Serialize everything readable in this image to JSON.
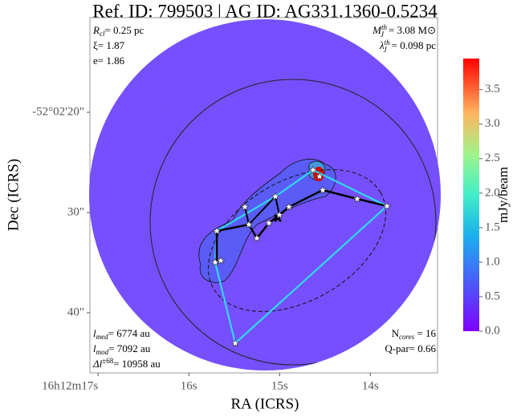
{
  "chart_data": {
    "type": "image",
    "title": "Ref. ID: 799503 | AG ID: AG331.1360-0.5234",
    "x_label": "RA (ICRS)",
    "y_label": "Dec (ICRS)",
    "xlim": [
      17.09,
      13.26
    ],
    "xticks": [
      {
        "value": 17,
        "label": "16h12m17s"
      },
      {
        "value": 16,
        "label": "16s"
      },
      {
        "value": 15,
        "label": "15s"
      },
      {
        "value": 14,
        "label": "14s"
      }
    ],
    "ylim": [
      46,
      10.56
    ],
    "yticks": [
      {
        "value": 20,
        "label": "-52°02'20\""
      },
      {
        "value": 30,
        "label": "30\""
      },
      {
        "value": 40,
        "label": "40\""
      }
    ],
    "colorbar": {
      "label": "mJy/beam",
      "lim": [
        0,
        3.95
      ],
      "ticks": [
        {
          "value": 0,
          "label": "0.0"
        },
        {
          "value": 0.5,
          "label": "0.5"
        },
        {
          "value": 1,
          "label": "1.0"
        },
        {
          "value": 1.5,
          "label": "1.5"
        },
        {
          "value": 2,
          "label": "2.0"
        },
        {
          "value": 2.5,
          "label": "2.5"
        },
        {
          "value": 3,
          "label": "3.0"
        },
        {
          "value": 3.5,
          "label": "3.5"
        }
      ]
    },
    "annotations": {
      "r_cl": {
        "sym": "R",
        "sub": "cl",
        "text": "= 0.25 pc"
      },
      "xi": {
        "text": "ξ= 1.87"
      },
      "e": {
        "text": "e= 1.86"
      },
      "mass": {
        "sym": "M",
        "sub": "J",
        "sup": "th",
        "text": "= 3.08 M⊙"
      },
      "lambda": {
        "sym": "λ",
        "sub": "J",
        "sup": "th",
        "text": "= 0.098 pc"
      },
      "l_med": {
        "sym": "l",
        "sub": "med",
        "text": "= 6774 au"
      },
      "l_mod": {
        "sym": "l",
        "sub": "mod",
        "text": "= 7092 au"
      },
      "delta_l": {
        "sym": "Δl",
        "sup": "±68",
        "text": "= 10958 au"
      },
      "n_cores": {
        "sym": "N",
        "sub": "cores",
        "text": " = 16"
      },
      "q_par": {
        "text": "Q-par= 0.66"
      }
    }
  }
}
